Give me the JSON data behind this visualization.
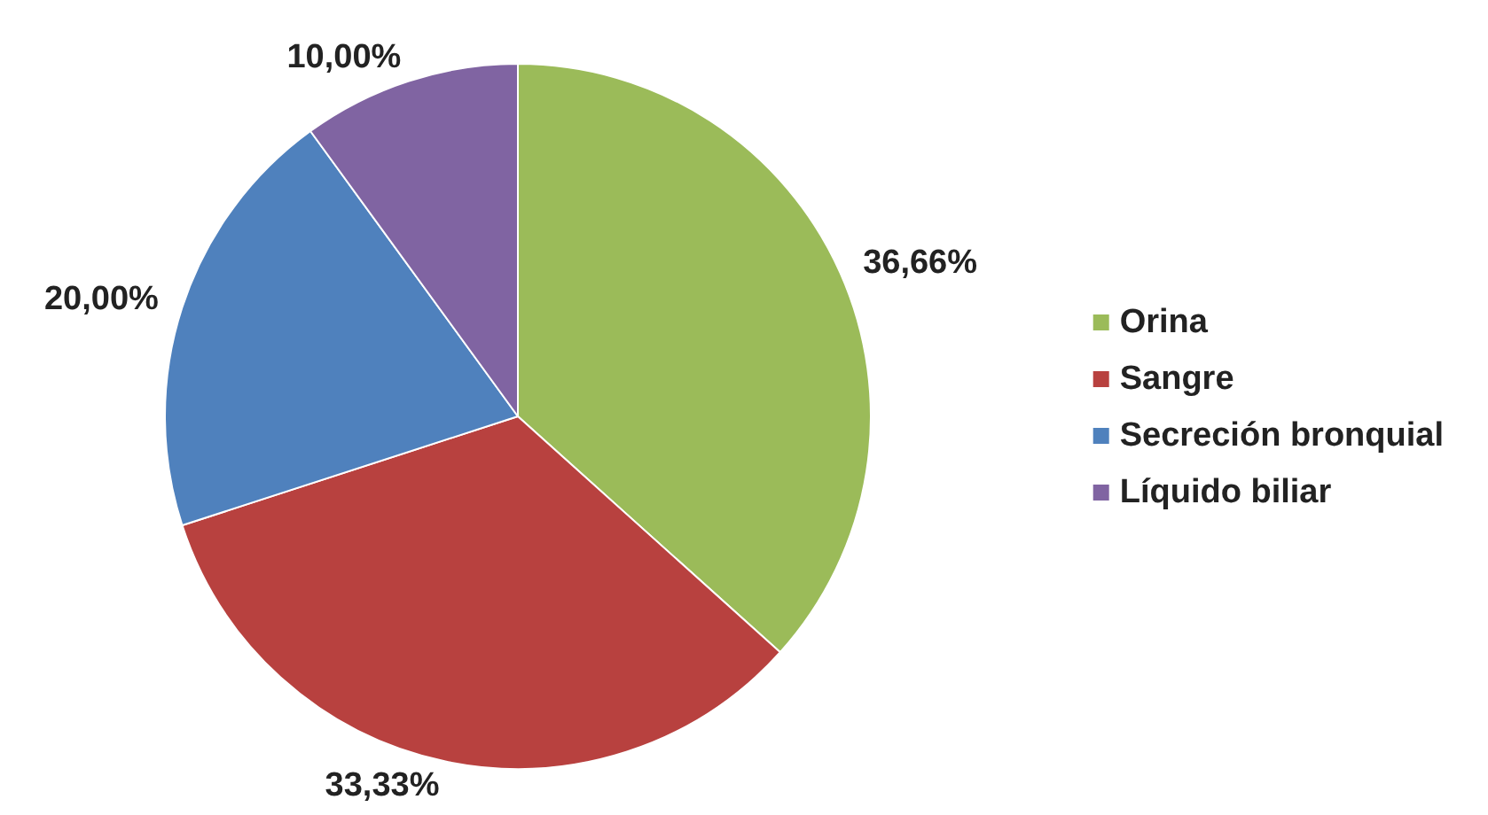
{
  "chart_data": {
    "type": "pie",
    "categories": [
      "Orina",
      "Sangre",
      "Secreción bronquial",
      "Líquido biliar"
    ],
    "values": [
      36.66,
      33.33,
      20.0,
      10.0
    ],
    "value_labels": [
      "36,66%",
      "33,33%",
      "20,00%",
      "10,00%"
    ],
    "colors": [
      "#9bbb59",
      "#b8413f",
      "#4f81bd",
      "#8064a2"
    ],
    "legend": "right"
  }
}
